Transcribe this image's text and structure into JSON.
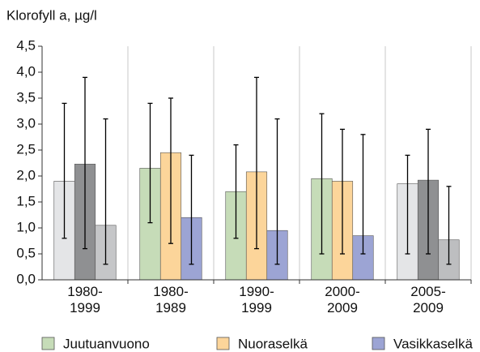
{
  "chart_data": {
    "type": "bar",
    "y_axis_label": "Klorofyll a, µg/l",
    "categories": [
      "1980-\n1999",
      "1980-\n1989",
      "1990-\n1999",
      "2000-\n2009",
      "2005-\n2009"
    ],
    "series": [
      {
        "name": "Juutuanvuono",
        "color": "#c6dcb8",
        "colors": [
          "#e4e5e7",
          "#c6dcb8",
          "#c6dcb8",
          "#c6dcb8",
          "#e4e5e7"
        ],
        "values": [
          1.9,
          2.15,
          1.7,
          1.95,
          1.85
        ],
        "low": [
          0.8,
          1.1,
          0.8,
          0.5,
          0.5
        ],
        "high": [
          3.4,
          3.4,
          2.6,
          3.2,
          2.4
        ]
      },
      {
        "name": "Nuoraselkä",
        "color": "#fcd59a",
        "colors": [
          "#8f9092",
          "#fcd59a",
          "#fcd59a",
          "#fcd59a",
          "#8f9092"
        ],
        "values": [
          2.23,
          2.45,
          2.08,
          1.9,
          1.92
        ],
        "low": [
          0.6,
          0.7,
          0.6,
          0.5,
          0.5
        ],
        "high": [
          3.9,
          3.5,
          3.9,
          2.9,
          2.9
        ]
      },
      {
        "name": "Vasikkaselkä",
        "color": "#9ca4d4",
        "colors": [
          "#c5c6c8",
          "#9ca4d4",
          "#9ca4d4",
          "#9ca4d4",
          "#bdbec0"
        ],
        "values": [
          1.05,
          1.2,
          0.95,
          0.85,
          0.77
        ],
        "low": [
          0.3,
          0.3,
          0.3,
          0.5,
          0.3
        ],
        "high": [
          3.1,
          2.4,
          3.1,
          2.8,
          1.8
        ]
      }
    ],
    "ylim": [
      0,
      4.5
    ],
    "yticks": [
      {
        "value": 0,
        "label": "0,0"
      },
      {
        "value": 0.5,
        "label": "0,5"
      },
      {
        "value": 1,
        "label": "1,0"
      },
      {
        "value": 1.5,
        "label": "1,5"
      },
      {
        "value": 2,
        "label": "2,0"
      },
      {
        "value": 2.5,
        "label": "2,5"
      },
      {
        "value": 3,
        "label": "3,0"
      },
      {
        "value": 3.5,
        "label": "3,5"
      },
      {
        "value": 4,
        "label": "4,0"
      },
      {
        "value": 4.5,
        "label": "4,5"
      }
    ]
  }
}
